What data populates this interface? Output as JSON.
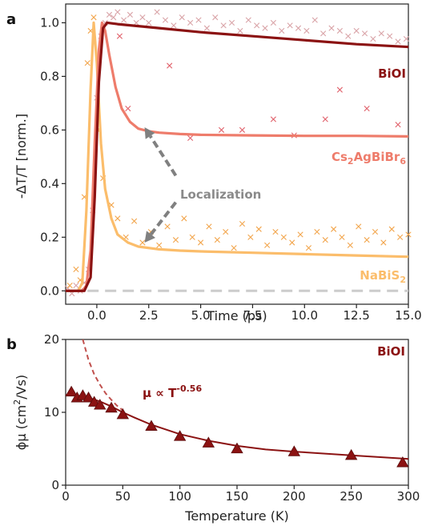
{
  "colors": {
    "biooi": "#8b1212",
    "biooi_points": "#d9a3a7",
    "cs2": "#ee7c6b",
    "cs2_points": "#e0606a",
    "nabis2": "#fbbd6b",
    "nabis2_points": "#f2a54c",
    "baseline": "#cccccc",
    "arrow": "#808080",
    "localization_text": "#8a8a8a",
    "panel_b": "#8b1212"
  },
  "panel_a": {
    "panel_label": "a",
    "ylabel": "-ΔT/T [norm.]",
    "xlabel": "Time (ps)",
    "annotation": "Localization",
    "labels": {
      "biooi": "BiOI",
      "cs2_main": "Cs",
      "cs2_sub1": "2",
      "cs2_mid": "AgBiBr",
      "cs2_sub2": "6",
      "na_main": "NaBiS",
      "na_sub": "2"
    }
  },
  "panel_b": {
    "panel_label": "b",
    "ylabel_main": "ϕμ (cm",
    "ylabel_sup": "2",
    "ylabel_end": "/Vs)",
    "xlabel": "Temperature (K)",
    "series_label": "BiOI",
    "power_label_main": "μ ∝ T",
    "power_label_sup": "-0.56"
  },
  "chart_data": [
    {
      "type": "line",
      "xlim": [
        -1.5,
        15
      ],
      "ylim": [
        -0.05,
        1.07
      ],
      "xticks": [
        0.0,
        2.5,
        5.0,
        7.5,
        10.0,
        12.5,
        15.0
      ],
      "xtick_labels": [
        "0.0",
        "2.5",
        "5.0",
        "7.5",
        "10.0",
        "12.5",
        "15.0"
      ],
      "yticks": [
        0.0,
        0.2,
        0.4,
        0.6,
        0.8,
        1.0
      ],
      "ytick_labels": [
        "0.0",
        "0.2",
        "0.4",
        "0.6",
        "0.8",
        "1.0"
      ],
      "grid": false,
      "series": [
        {
          "name": "BiOI",
          "fit": {
            "x": [
              -1.5,
              -0.6,
              -0.3,
              -0.1,
              0.1,
              0.3,
              0.5,
              1.0,
              3.0,
              5.0,
              7.5,
              10.0,
              12.5,
              15.0
            ],
            "y": [
              0.0,
              0.0,
              0.05,
              0.35,
              0.78,
              0.98,
              1.0,
              0.995,
              0.98,
              0.965,
              0.95,
              0.935,
              0.92,
              0.91
            ]
          },
          "points": {
            "x": [
              -1.4,
              -1.2,
              -1.0,
              -0.8,
              -0.6,
              -0.4,
              -0.2,
              0.0,
              0.2,
              0.4,
              0.6,
              0.8,
              1.0,
              1.3,
              1.6,
              1.9,
              2.2,
              2.5,
              2.9,
              3.3,
              3.7,
              4.1,
              4.5,
              4.9,
              5.3,
              5.7,
              6.1,
              6.5,
              6.9,
              7.3,
              7.7,
              8.1,
              8.5,
              8.9,
              9.3,
              9.7,
              10.1,
              10.5,
              10.9,
              11.3,
              11.7,
              12.1,
              12.5,
              12.9,
              13.3,
              13.7,
              14.1,
              14.5,
              14.9
            ],
            "y": [
              0.01,
              -0.01,
              0.02,
              0.0,
              0.03,
              0.08,
              0.3,
              0.72,
              0.95,
              1.0,
              1.03,
              1.02,
              1.04,
              1.01,
              1.03,
              1.0,
              1.02,
              1.0,
              1.04,
              1.01,
              0.99,
              1.02,
              1.0,
              1.01,
              0.98,
              1.02,
              0.99,
              1.0,
              0.97,
              1.01,
              0.99,
              0.98,
              1.0,
              0.97,
              0.99,
              0.98,
              0.97,
              1.01,
              0.96,
              0.98,
              0.97,
              0.95,
              0.97,
              0.96,
              0.94,
              0.96,
              0.95,
              0.93,
              0.94
            ]
          }
        },
        {
          "name": "Cs2AgBiBr6",
          "fit": {
            "x": [
              -1.5,
              -0.7,
              -0.5,
              -0.3,
              -0.1,
              0.1,
              0.25,
              0.4,
              0.6,
              0.9,
              1.2,
              1.6,
              2.0,
              2.5,
              3.0,
              4.0,
              5.0,
              7.5,
              10.0,
              12.5,
              15.0
            ],
            "y": [
              0.0,
              0.0,
              0.02,
              0.15,
              0.55,
              0.9,
              1.0,
              0.97,
              0.88,
              0.76,
              0.68,
              0.63,
              0.605,
              0.595,
              0.59,
              0.585,
              0.582,
              0.58,
              0.578,
              0.578,
              0.576
            ]
          },
          "points": {
            "x": [
              1.1,
              1.5,
              3.5,
              4.5,
              6.0,
              7.0,
              8.5,
              9.5,
              11.0,
              11.7,
              13.0,
              14.5
            ],
            "y": [
              0.95,
              0.68,
              0.84,
              0.57,
              0.6,
              0.6,
              0.64,
              0.58,
              0.64,
              0.75,
              0.68,
              0.62
            ]
          }
        },
        {
          "name": "NaBiS2",
          "fit": {
            "x": [
              -1.5,
              -0.9,
              -0.7,
              -0.5,
              -0.3,
              -0.15,
              0.0,
              0.2,
              0.4,
              0.7,
              1.0,
              1.5,
              2.0,
              3.0,
              4.0,
              5.0,
              7.5,
              10.0,
              12.5,
              15.0
            ],
            "y": [
              0.0,
              0.0,
              0.03,
              0.3,
              0.75,
              1.0,
              0.85,
              0.55,
              0.38,
              0.27,
              0.21,
              0.18,
              0.165,
              0.155,
              0.15,
              0.147,
              0.142,
              0.137,
              0.132,
              0.127
            ]
          },
          "points": {
            "x": [
              -1.3,
              -1.0,
              -0.8,
              -0.6,
              -0.45,
              -0.3,
              -0.15,
              0.05,
              0.3,
              0.7,
              1.0,
              1.4,
              1.8,
              2.2,
              2.6,
              3.0,
              3.4,
              3.8,
              4.2,
              4.6,
              5.0,
              5.4,
              5.8,
              6.2,
              6.6,
              7.0,
              7.4,
              7.8,
              8.2,
              8.6,
              9.0,
              9.4,
              9.8,
              10.2,
              10.6,
              11.0,
              11.4,
              11.8,
              12.2,
              12.6,
              13.0,
              13.4,
              13.8,
              14.2,
              14.6,
              15.0
            ],
            "y": [
              0.02,
              0.08,
              0.04,
              0.35,
              0.85,
              0.97,
              1.02,
              0.6,
              0.42,
              0.32,
              0.27,
              0.2,
              0.26,
              0.18,
              0.22,
              0.17,
              0.24,
              0.19,
              0.27,
              0.2,
              0.18,
              0.24,
              0.19,
              0.22,
              0.16,
              0.25,
              0.2,
              0.23,
              0.17,
              0.22,
              0.2,
              0.18,
              0.21,
              0.16,
              0.22,
              0.19,
              0.23,
              0.2,
              0.17,
              0.24,
              0.19,
              0.22,
              0.18,
              0.23,
              0.2,
              0.21
            ]
          }
        }
      ],
      "baseline": {
        "y": 0.0
      },
      "arrows": [
        {
          "from": [
            3.8,
            0.43
          ],
          "to": [
            2.3,
            0.61
          ]
        },
        {
          "from": [
            3.8,
            0.33
          ],
          "to": [
            2.3,
            0.18
          ]
        }
      ]
    },
    {
      "type": "scatter",
      "xlim": [
        0,
        300
      ],
      "ylim": [
        0,
        20
      ],
      "xticks": [
        0,
        50,
        100,
        150,
        200,
        250,
        300
      ],
      "xtick_labels": [
        "0",
        "50",
        "100",
        "150",
        "200",
        "250",
        "300"
      ],
      "yticks": [
        0,
        10,
        20
      ],
      "ytick_labels": [
        "0",
        "10",
        "20"
      ],
      "grid": false,
      "series": [
        {
          "name": "BiOI",
          "x": [
            5,
            10,
            15,
            20,
            25,
            30,
            40,
            50,
            75,
            100,
            125,
            150,
            200,
            250,
            295
          ],
          "y": [
            12.8,
            12.0,
            12.3,
            12.0,
            11.4,
            11.0,
            10.6,
            9.7,
            8.1,
            6.7,
            5.8,
            5.0,
            4.6,
            4.1,
            3.1
          ]
        }
      ],
      "fit_solid": {
        "x": [
          0,
          10,
          20,
          30,
          40,
          50,
          60,
          75,
          100,
          125,
          150,
          175,
          200,
          250,
          300
        ],
        "y": [
          12.4,
          12.3,
          12.0,
          11.5,
          10.8,
          10.0,
          9.3,
          8.3,
          7.0,
          6.1,
          5.4,
          4.9,
          4.6,
          4.1,
          3.6
        ]
      },
      "fit_dashed": {
        "x": [
          15,
          20,
          25,
          30,
          35,
          40,
          45,
          50
        ],
        "y": [
          20.0,
          17.2,
          15.2,
          13.8,
          12.6,
          11.7,
          10.9,
          10.3
        ]
      }
    }
  ]
}
